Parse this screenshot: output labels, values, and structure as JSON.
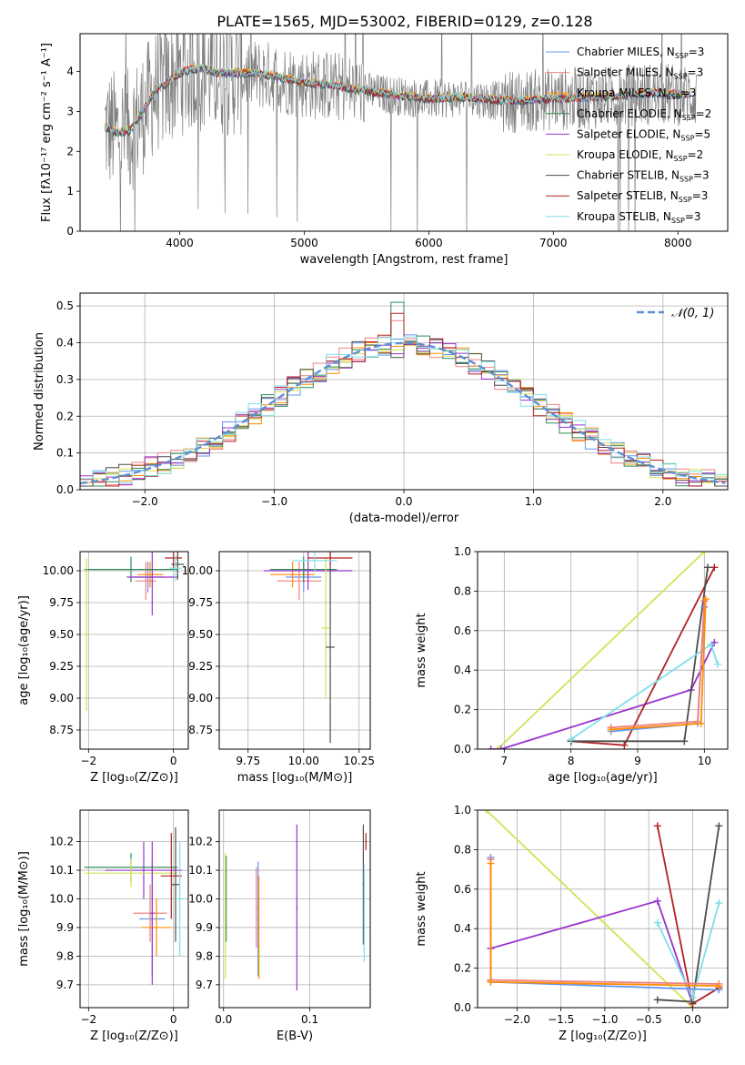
{
  "figure_title": "PLATE=1565, MJD=53002, FIBERID=0129, z=0.128",
  "colors": {
    "chabrier_miles": "#6495ed",
    "salpeter_miles": "#f08080",
    "kroupa_miles": "#ff8c00",
    "chabrier_elodie": "#2e8b57",
    "salpeter_elodie": "#9932cc",
    "kroupa_elodie": "#d4e157",
    "chabrier_stelib": "#4d4d4d",
    "salpeter_stelib": "#b22222",
    "kroupa_stelib": "#80deea",
    "data": "#808080",
    "normal": "#5b8fd6",
    "grid": "#b0b0b0"
  },
  "chart_data": [
    {
      "id": "spectrum",
      "type": "line",
      "title": "",
      "xlabel": "wavelength [Angstrom, rest frame]",
      "ylabel": "Flux [fλ10⁻¹⁷ erg cm⁻² s⁻¹ A⁻¹]",
      "xlim": [
        3200,
        8400
      ],
      "ylim": [
        0,
        4.95
      ],
      "xticks": [
        4000,
        5000,
        6000,
        7000,
        8000
      ],
      "yticks": [
        0,
        1,
        2,
        3,
        4
      ],
      "grid": false,
      "legend_position": "right",
      "legend": [
        {
          "label": "Chabrier MILES, N",
          "sub": "SSP",
          "tail": "=3",
          "color_key": "chabrier_miles"
        },
        {
          "label": "Salpeter MILES, N",
          "sub": "SSP",
          "tail": "=3",
          "color_key": "salpeter_miles"
        },
        {
          "label": "Kroupa MILES, N",
          "sub": "SSP",
          "tail": "=3",
          "color_key": "kroupa_miles"
        },
        {
          "label": "Chabrier ELODIE, N",
          "sub": "SSP",
          "tail": "=2",
          "color_key": "chabrier_elodie"
        },
        {
          "label": "Salpeter ELODIE, N",
          "sub": "SSP",
          "tail": "=5",
          "color_key": "salpeter_elodie"
        },
        {
          "label": "Kroupa ELODIE, N",
          "sub": "SSP",
          "tail": "=2",
          "color_key": "kroupa_elodie"
        },
        {
          "label": "Chabrier STELIB, N",
          "sub": "SSP",
          "tail": "=3",
          "color_key": "chabrier_stelib"
        },
        {
          "label": "Salpeter STELIB, N",
          "sub": "SSP",
          "tail": "=3",
          "color_key": "salpeter_stelib"
        },
        {
          "label": "Kroupa STELIB, N",
          "sub": "SSP",
          "tail": "=3",
          "color_key": "kroupa_stelib"
        }
      ],
      "continuum": {
        "x": [
          3400,
          3500,
          3600,
          3700,
          3800,
          3900,
          4000,
          4100,
          4200,
          4300,
          4500,
          4700,
          5000,
          5200,
          5400,
          5600,
          6000,
          6300,
          6600,
          7000,
          7400,
          7800,
          8100
        ],
        "y": [
          2.6,
          2.45,
          2.5,
          2.95,
          3.5,
          3.7,
          3.95,
          4.05,
          4.05,
          3.95,
          3.95,
          3.9,
          3.7,
          3.65,
          3.55,
          3.45,
          3.3,
          3.35,
          3.25,
          3.3,
          3.35,
          3.45,
          3.4
        ]
      }
    },
    {
      "id": "residuals",
      "type": "step",
      "title": "",
      "xlabel": "(data-model)/error",
      "ylabel": "Normed distribution",
      "xlim": [
        -2.5,
        2.5
      ],
      "ylim": [
        0,
        0.535
      ],
      "xticks": [
        -2,
        -1,
        0,
        1,
        2
      ],
      "yticks": [
        0.0,
        0.1,
        0.2,
        0.3,
        0.4,
        0.5
      ],
      "grid": true,
      "legend_position": "top-right",
      "legend": [
        {
          "label": "𝒩(0, 1)",
          "color_key": "normal"
        }
      ],
      "bin_width": 0.1,
      "peak_bin_values": [
        0.41,
        0.46,
        0.39,
        0.51,
        0.37,
        0.38,
        0.36,
        0.48,
        0.4
      ]
    },
    {
      "id": "z_age",
      "type": "errorbar",
      "title": "",
      "xlabel": "Z [log₁₀(Z/Z⊙)]",
      "ylabel": "age  [log₁₀(age/yr)]",
      "xlim": [
        -2.2,
        0.35
      ],
      "ylim": [
        8.6,
        10.15
      ],
      "xticks": [
        -2,
        0
      ],
      "yticks": [
        8.75,
        9.0,
        9.25,
        9.5,
        9.75,
        10.0
      ],
      "grid": true,
      "points": [
        {
          "x": -0.6,
          "y": 9.95,
          "xerr": 0.35,
          "yerr": 0.12,
          "color_key": "chabrier_miles"
        },
        {
          "x": -0.65,
          "y": 9.92,
          "xerr": 0.25,
          "yerr": 0.15,
          "color_key": "salpeter_miles"
        },
        {
          "x": -0.55,
          "y": 9.97,
          "xerr": 0.3,
          "yerr": 0.1,
          "color_key": "kroupa_miles"
        },
        {
          "x": -1.0,
          "y": 10.01,
          "xerr": 1.1,
          "yerr": 0.1,
          "color_key": "chabrier_elodie"
        },
        {
          "x": -0.5,
          "y": 9.95,
          "xerr": 0.6,
          "yerr": 0.3,
          "color_key": "salpeter_elodie"
        },
        {
          "x": -2.05,
          "y": 9.5,
          "xerr": 0.05,
          "yerr": 0.6,
          "color_key": "kroupa_elodie"
        },
        {
          "x": 0.1,
          "y": 10.05,
          "xerr": 0.15,
          "yerr": 0.12,
          "color_key": "chabrier_stelib"
        },
        {
          "x": 0.0,
          "y": 10.1,
          "xerr": 0.2,
          "yerr": 0.08,
          "color_key": "salpeter_stelib"
        },
        {
          "x": 0.05,
          "y": 10.02,
          "xerr": 0.15,
          "yerr": 0.1,
          "color_key": "kroupa_stelib"
        }
      ]
    },
    {
      "id": "mass_age",
      "type": "errorbar",
      "title": "",
      "xlabel": "mass [log₁₀(M/M⊙)]",
      "ylabel": "",
      "xlim": [
        9.62,
        10.3
      ],
      "ylim": [
        8.6,
        10.15
      ],
      "xticks": [
        9.75,
        10.0,
        10.25
      ],
      "yticks": [
        8.75,
        9.0,
        9.25,
        9.5,
        9.75,
        10.0
      ],
      "grid": true,
      "points": [
        {
          "x": 10.0,
          "y": 9.95,
          "xerr": 0.08,
          "yerr": 0.12,
          "color_key": "chabrier_miles"
        },
        {
          "x": 9.98,
          "y": 9.92,
          "xerr": 0.1,
          "yerr": 0.15,
          "color_key": "salpeter_miles"
        },
        {
          "x": 9.95,
          "y": 9.97,
          "xerr": 0.1,
          "yerr": 0.1,
          "color_key": "kroupa_miles"
        },
        {
          "x": 10.0,
          "y": 10.01,
          "xerr": 0.15,
          "yerr": 0.1,
          "color_key": "chabrier_elodie"
        },
        {
          "x": 10.02,
          "y": 10.0,
          "xerr": 0.2,
          "yerr": 0.15,
          "color_key": "salpeter_elodie"
        },
        {
          "x": 10.1,
          "y": 9.55,
          "xerr": 0.02,
          "yerr": 0.55,
          "color_key": "kroupa_elodie"
        },
        {
          "x": 10.12,
          "y": 9.4,
          "xerr": 0.02,
          "yerr": 0.75,
          "color_key": "chabrier_stelib"
        },
        {
          "x": 10.12,
          "y": 10.1,
          "xerr": 0.1,
          "yerr": 0.06,
          "color_key": "salpeter_stelib"
        },
        {
          "x": 10.05,
          "y": 10.08,
          "xerr": 0.1,
          "yerr": 0.08,
          "color_key": "kroupa_stelib"
        }
      ]
    },
    {
      "id": "weight_age",
      "type": "line",
      "title": "",
      "xlabel": "age  [log₁₀(age/yr)]",
      "ylabel": "mass weight",
      "xlim": [
        6.6,
        10.35
      ],
      "ylim": [
        0,
        1.0
      ],
      "xticks": [
        7,
        8,
        9,
        10
      ],
      "yticks": [
        0.0,
        0.2,
        0.4,
        0.6,
        0.8,
        1.0
      ],
      "grid": true,
      "series": [
        {
          "color_key": "kroupa_elodie",
          "x": [
            6.9,
            10.0
          ],
          "y": [
            0.0,
            1.0
          ]
        },
        {
          "color_key": "salpeter_elodie",
          "x": [
            6.8,
            6.95,
            9.8,
            10.15
          ],
          "y": [
            0.0,
            0.0,
            0.3,
            0.54
          ]
        },
        {
          "color_key": "salpeter_stelib",
          "x": [
            8.0,
            8.8,
            10.15
          ],
          "y": [
            0.04,
            0.02,
            0.92
          ]
        },
        {
          "color_key": "chabrier_stelib",
          "x": [
            8.0,
            9.7,
            10.05
          ],
          "y": [
            0.04,
            0.04,
            0.92
          ]
        },
        {
          "color_key": "kroupa_stelib",
          "x": [
            8.0,
            10.1,
            10.2
          ],
          "y": [
            0.05,
            0.53,
            0.43
          ]
        },
        {
          "color_key": "chabrier_miles",
          "x": [
            8.6,
            9.9,
            10.0
          ],
          "y": [
            0.09,
            0.13,
            0.72
          ]
        },
        {
          "color_key": "salpeter_miles",
          "x": [
            8.6,
            9.9,
            10.0
          ],
          "y": [
            0.11,
            0.14,
            0.75
          ]
        },
        {
          "color_key": "kroupa_miles",
          "x": [
            8.6,
            9.95,
            10.02
          ],
          "y": [
            0.1,
            0.13,
            0.76
          ]
        }
      ]
    },
    {
      "id": "z_mass",
      "type": "errorbar",
      "title": "",
      "xlabel": "Z [log₁₀(Z/Z⊙)]",
      "ylabel": "mass [log₁₀(M/M⊙)]",
      "xlim": [
        -2.2,
        0.35
      ],
      "ylim": [
        9.62,
        10.31
      ],
      "xticks": [
        -2,
        0
      ],
      "yticks": [
        9.7,
        9.8,
        9.9,
        10.0,
        10.1,
        10.2
      ],
      "grid": true,
      "points": [
        {
          "x": -0.5,
          "y": 9.93,
          "xerr": 0.3,
          "yerr": 0.2,
          "color_key": "chabrier_miles"
        },
        {
          "x": -0.55,
          "y": 9.95,
          "xerr": 0.4,
          "yerr": 0.1,
          "color_key": "salpeter_miles"
        },
        {
          "x": -0.4,
          "y": 9.9,
          "xerr": 0.35,
          "yerr": 0.1,
          "color_key": "kroupa_miles"
        },
        {
          "x": -1.0,
          "y": 10.11,
          "xerr": 1.1,
          "yerr": 0.05,
          "color_key": "chabrier_elodie"
        },
        {
          "x": -0.7,
          "y": 10.1,
          "xerr": 0.9,
          "yerr": 0.1,
          "color_key": "salpeter_elodie"
        },
        {
          "x": -1.0,
          "y": 10.09,
          "xerr": 1.1,
          "yerr": 0.05,
          "color_key": "kroupa_elodie"
        },
        {
          "x": -0.5,
          "y": 9.95,
          "xerr": 0.05,
          "yerr": 0.25,
          "color_key": "salpeter_elodie"
        },
        {
          "x": -0.05,
          "y": 10.08,
          "xerr": 0.25,
          "yerr": 0.15,
          "color_key": "salpeter_stelib"
        },
        {
          "x": 0.05,
          "y": 10.05,
          "xerr": 0.1,
          "yerr": 0.2,
          "color_key": "chabrier_stelib"
        },
        {
          "x": 0.15,
          "y": 10.0,
          "xerr": 0.1,
          "yerr": 0.2,
          "color_key": "kroupa_stelib"
        }
      ]
    },
    {
      "id": "ebv_mass",
      "type": "errorbar",
      "title": "",
      "xlabel": "E(B-V)",
      "ylabel": "",
      "xlim": [
        -0.005,
        0.17
      ],
      "ylim": [
        9.62,
        10.31
      ],
      "xticks": [
        0.0,
        0.1
      ],
      "yticks": [
        9.7,
        9.8,
        9.9,
        10.0,
        10.1,
        10.2
      ],
      "grid": true,
      "points": [
        {
          "x": 0.04,
          "y": 9.93,
          "xerr": 0.001,
          "yerr": 0.2,
          "color_key": "chabrier_miles"
        },
        {
          "x": 0.038,
          "y": 9.97,
          "xerr": 0.001,
          "yerr": 0.14,
          "color_key": "salpeter_miles"
        },
        {
          "x": 0.041,
          "y": 9.9,
          "xerr": 0.001,
          "yerr": 0.18,
          "color_key": "kroupa_miles"
        },
        {
          "x": 0.003,
          "y": 10.0,
          "xerr": 0.001,
          "yerr": 0.15,
          "color_key": "chabrier_elodie"
        },
        {
          "x": 0.085,
          "y": 9.97,
          "xerr": 0.001,
          "yerr": 0.29,
          "color_key": "salpeter_elodie"
        },
        {
          "x": 0.002,
          "y": 9.94,
          "xerr": 0.001,
          "yerr": 0.22,
          "color_key": "kroupa_elodie"
        },
        {
          "x": 0.162,
          "y": 10.05,
          "xerr": 0.001,
          "yerr": 0.21,
          "color_key": "chabrier_stelib"
        },
        {
          "x": 0.165,
          "y": 10.2,
          "xerr": 0.001,
          "yerr": 0.03,
          "color_key": "salpeter_stelib"
        },
        {
          "x": 0.163,
          "y": 9.95,
          "xerr": 0.001,
          "yerr": 0.17,
          "color_key": "kroupa_stelib"
        }
      ]
    },
    {
      "id": "weight_z",
      "type": "line",
      "title": "",
      "xlabel": "Z [log₁₀(Z/Z⊙)]",
      "ylabel": "mass weight",
      "xlim": [
        -2.45,
        0.4
      ],
      "ylim": [
        0,
        1.0
      ],
      "xticks": [
        -2.0,
        -1.5,
        -1.0,
        -0.5,
        0.0
      ],
      "yticks": [
        0.0,
        0.2,
        0.4,
        0.6,
        0.8,
        1.0
      ],
      "grid": true,
      "series": [
        {
          "color_key": "kroupa_elodie",
          "x": [
            -2.35,
            0.0
          ],
          "y": [
            1.0,
            0.0
          ]
        },
        {
          "color_key": "salpeter_elodie",
          "x": [
            -2.3,
            -2.3,
            -0.4,
            0.0
          ],
          "y": [
            0.14,
            0.3,
            0.54,
            0.02
          ]
        },
        {
          "color_key": "salpeter_stelib",
          "x": [
            -0.4,
            0.0,
            0.3
          ],
          "y": [
            0.92,
            0.02,
            0.1
          ]
        },
        {
          "color_key": "chabrier_stelib",
          "x": [
            -0.4,
            0.0,
            0.3
          ],
          "y": [
            0.04,
            0.03,
            0.92
          ]
        },
        {
          "color_key": "kroupa_stelib",
          "x": [
            -0.4,
            0.0,
            0.3
          ],
          "y": [
            0.43,
            0.05,
            0.53
          ]
        },
        {
          "color_key": "chabrier_miles",
          "x": [
            -2.3,
            -2.3,
            0.3
          ],
          "y": [
            0.76,
            0.13,
            0.09
          ]
        },
        {
          "color_key": "salpeter_miles",
          "x": [
            -2.3,
            -2.3,
            0.3
          ],
          "y": [
            0.75,
            0.14,
            0.12
          ]
        },
        {
          "color_key": "kroupa_miles",
          "x": [
            -2.3,
            -2.3,
            0.3
          ],
          "y": [
            0.73,
            0.13,
            0.11
          ]
        }
      ]
    }
  ]
}
